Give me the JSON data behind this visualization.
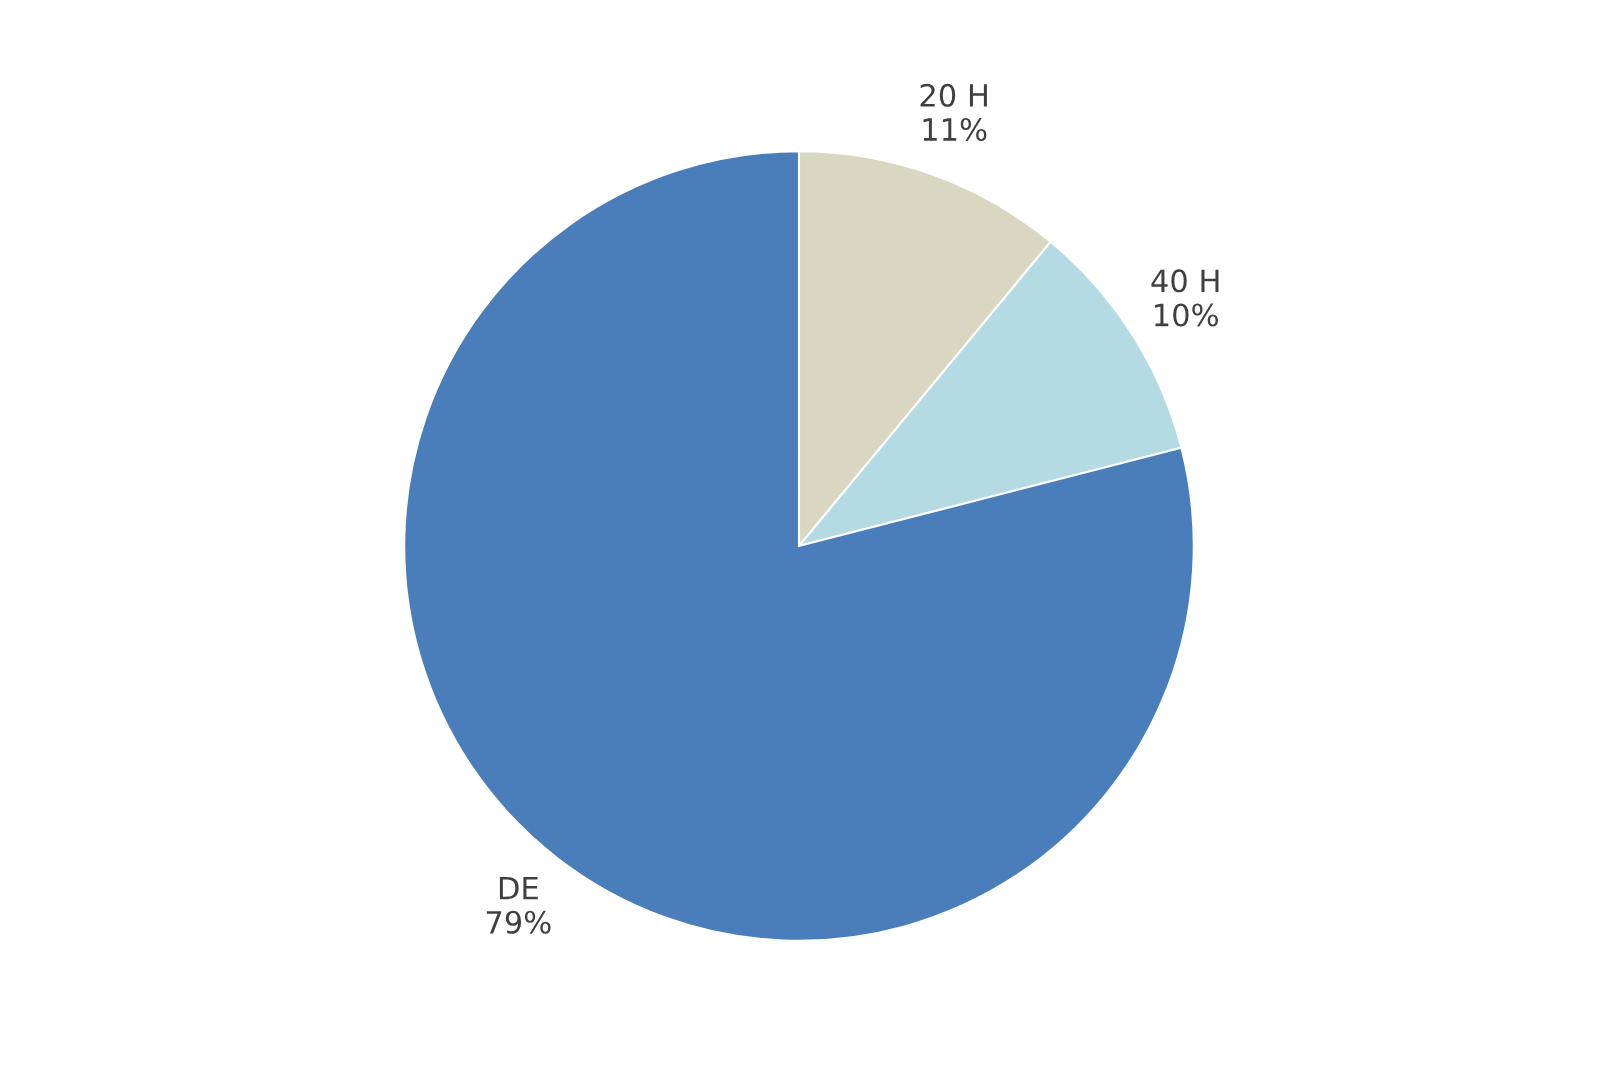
{
  "chart_data": {
    "type": "pie",
    "categories": [
      "20 H",
      "40 H",
      "DE"
    ],
    "values": [
      11,
      10,
      79
    ],
    "value_labels": [
      "11%",
      "10%",
      "79%"
    ],
    "colors": [
      "#d9d7c1",
      "#b4dbe3",
      "#4a7ebb"
    ]
  }
}
